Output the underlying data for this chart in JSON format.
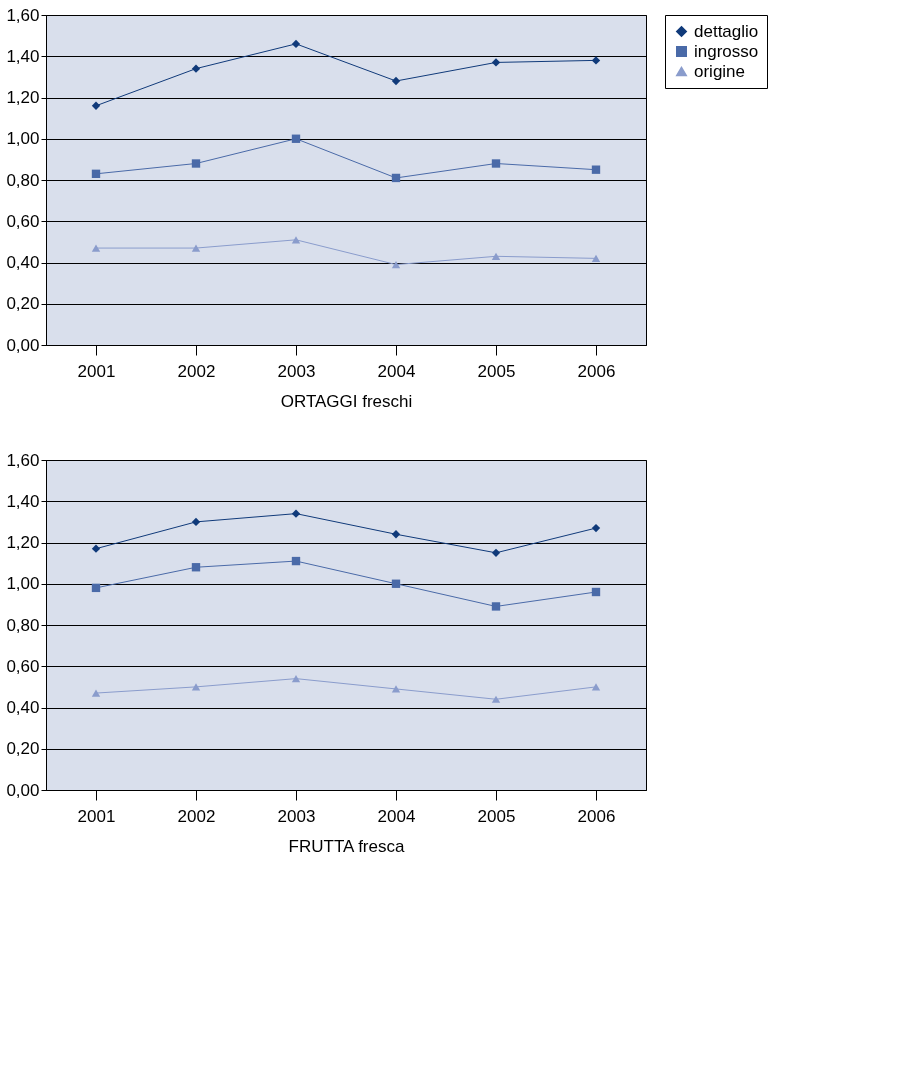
{
  "chart_data": [
    {
      "type": "line",
      "xlabel": "ORTAGGI freschi",
      "categories": [
        "2001",
        "2002",
        "2003",
        "2004",
        "2005",
        "2006"
      ],
      "series": [
        {
          "name": "dettaglio",
          "color": "#103a7a",
          "marker": "diamond",
          "values": [
            1.16,
            1.34,
            1.46,
            1.28,
            1.37,
            1.38
          ]
        },
        {
          "name": "ingrosso",
          "color": "#4a6aa8",
          "marker": "square",
          "values": [
            0.83,
            0.88,
            1.0,
            0.81,
            0.88,
            0.85
          ]
        },
        {
          "name": "origine",
          "color": "#8a9ccc",
          "marker": "triangle",
          "values": [
            0.47,
            0.47,
            0.51,
            0.39,
            0.43,
            0.42
          ]
        }
      ],
      "ylim": [
        0,
        1.6
      ],
      "yticks": [
        {
          "value": 0,
          "label": "0,00"
        },
        {
          "value": 0.2,
          "label": "0,20"
        },
        {
          "value": 0.4,
          "label": "0,40"
        },
        {
          "value": 0.6,
          "label": "0,60"
        },
        {
          "value": 0.8,
          "label": "0,80"
        },
        {
          "value": 1.0,
          "label": "1,00"
        },
        {
          "value": 1.2,
          "label": "1,20"
        },
        {
          "value": 1.4,
          "label": "1,40"
        },
        {
          "value": 1.6,
          "label": "1,60"
        }
      ],
      "grid": "y",
      "legend": "right",
      "line_style": "solid"
    },
    {
      "type": "line",
      "xlabel": "FRUTTA fresca",
      "categories": [
        "2001",
        "2002",
        "2003",
        "2004",
        "2005",
        "2006"
      ],
      "series": [
        {
          "name": "dettaglio",
          "color": "#103a7a",
          "marker": "diamond",
          "values": [
            1.17,
            1.3,
            1.34,
            1.24,
            1.15,
            1.27
          ]
        },
        {
          "name": "ingrosso",
          "color": "#4a6aa8",
          "marker": "square",
          "values": [
            0.98,
            1.08,
            1.11,
            1.0,
            0.89,
            0.96
          ]
        },
        {
          "name": "origine",
          "color": "#8a9ccc",
          "marker": "triangle",
          "values": [
            0.47,
            0.5,
            0.54,
            0.49,
            0.44,
            0.5
          ]
        }
      ],
      "ylim": [
        0,
        1.6
      ],
      "yticks": [
        {
          "value": 0,
          "label": "0,00"
        },
        {
          "value": 0.2,
          "label": "0,20"
        },
        {
          "value": 0.4,
          "label": "0,40"
        },
        {
          "value": 0.6,
          "label": "0,60"
        },
        {
          "value": 0.8,
          "label": "0,80"
        },
        {
          "value": 1.0,
          "label": "1,00"
        },
        {
          "value": 1.2,
          "label": "1,20"
        },
        {
          "value": 1.4,
          "label": "1,40"
        },
        {
          "value": 1.6,
          "label": "1,60"
        }
      ],
      "grid": "y",
      "legend": "right",
      "line_style": "solid"
    }
  ]
}
